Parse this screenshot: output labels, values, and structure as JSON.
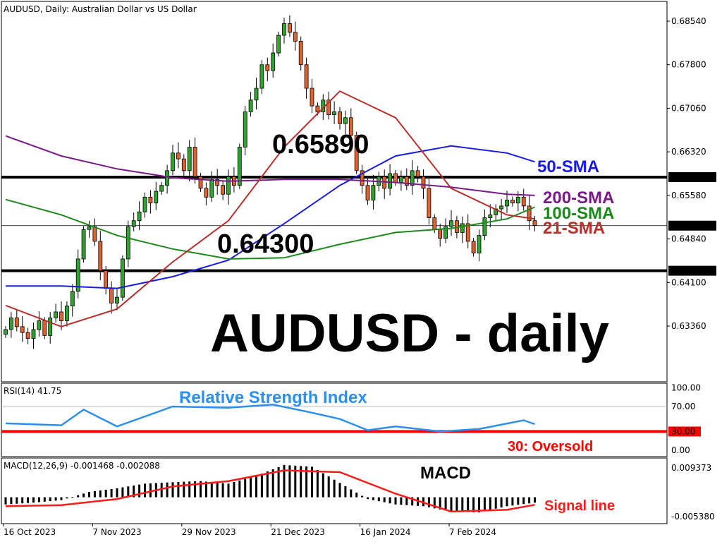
{
  "chart_data": {
    "type": "candlestick",
    "title": "AUDUSD, Daily:  Australian Dollar vs US Dollar",
    "overlay_title": "AUDUSD - daily",
    "colors": {
      "up": "#2ea62e",
      "down": "#e2622d",
      "sma50": "#1a1ae6",
      "sma100": "#1a8a1a",
      "sma200": "#7a1a8a",
      "sma21": "#b8302a",
      "rsi": "#2b8ff0",
      "macd_hist": "#000000",
      "signal": "#ff1a1a",
      "levels": "#000000",
      "oversold": "#ff0000"
    },
    "price_axis": {
      "ylim": [
        0.63,
        0.689
      ],
      "ticks": [
        "0.68540",
        "0.67800",
        "0.67060",
        "0.66320",
        "0.65580",
        "0.64840",
        "0.64100",
        "0.63360"
      ],
      "tick_values": [
        0.6854,
        0.678,
        0.6706,
        0.6632,
        0.6558,
        0.6484,
        0.641,
        0.6336
      ]
    },
    "date_labels": [
      {
        "bar": 0,
        "text": "16 Oct 2023"
      },
      {
        "bar": 16,
        "text": "7 Nov 2023"
      },
      {
        "bar": 32,
        "text": "29 Nov 2023"
      },
      {
        "bar": 48,
        "text": "21 Dec 2023"
      },
      {
        "bar": 64,
        "text": "16 Jan 2024"
      },
      {
        "bar": 80,
        "text": "7 Feb 2024"
      }
    ],
    "closes": [
      0.633,
      0.635,
      0.6335,
      0.6325,
      0.6315,
      0.633,
      0.6345,
      0.632,
      0.635,
      0.636,
      0.6345,
      0.637,
      0.6395,
      0.645,
      0.65,
      0.6505,
      0.648,
      0.643,
      0.64,
      0.6375,
      0.6385,
      0.645,
      0.6505,
      0.6515,
      0.653,
      0.6555,
      0.6545,
      0.6565,
      0.6575,
      0.66,
      0.663,
      0.662,
      0.66,
      0.664,
      0.659,
      0.657,
      0.6555,
      0.6585,
      0.6575,
      0.656,
      0.659,
      0.6575,
      0.664,
      0.67,
      0.672,
      0.674,
      0.678,
      0.677,
      0.68,
      0.683,
      0.685,
      0.6835,
      0.682,
      0.678,
      0.674,
      0.671,
      0.67,
      0.672,
      0.6695,
      0.67,
      0.668,
      0.669,
      0.666,
      0.66,
      0.6575,
      0.655,
      0.6575,
      0.659,
      0.657,
      0.6595,
      0.658,
      0.659,
      0.6575,
      0.66,
      0.659,
      0.657,
      0.652,
      0.65,
      0.6485,
      0.6505,
      0.6515,
      0.6495,
      0.651,
      0.648,
      0.646,
      0.649,
      0.652,
      0.6525,
      0.6535,
      0.654,
      0.655,
      0.6545,
      0.6555,
      0.654,
      0.6515,
      0.6507
    ],
    "sma_bars": [
      0,
      10,
      20,
      30,
      40,
      50,
      60,
      70,
      80,
      90,
      95
    ],
    "sma": [
      {
        "name": "50-SMA",
        "key": "sma50",
        "values": [
          0.6404,
          0.6404,
          0.64,
          0.642,
          0.6448,
          0.651,
          0.6575,
          0.6625,
          0.6642,
          0.663,
          0.6615
        ]
      },
      {
        "name": "100-SMA",
        "key": "sma100",
        "values": [
          0.6551,
          0.6525,
          0.649,
          0.6467,
          0.645,
          0.6452,
          0.6475,
          0.6495,
          0.6502,
          0.6518,
          0.6538
        ]
      },
      {
        "name": "200-SMA",
        "key": "sma200",
        "values": [
          0.6659,
          0.6625,
          0.6603,
          0.6588,
          0.6582,
          0.6585,
          0.6585,
          0.658,
          0.6572,
          0.656,
          0.6558
        ]
      },
      {
        "name": "21-SMA",
        "key": "sma21",
        "values": [
          0.6371,
          0.6335,
          0.6365,
          0.6445,
          0.6515,
          0.664,
          0.6735,
          0.669,
          0.657,
          0.6525,
          0.6518
        ]
      }
    ],
    "levels": [
      {
        "value": 0.6589,
        "label": "0.65890",
        "annotation": "0.65890"
      },
      {
        "value": 0.643,
        "label": "0.64300",
        "annotation": "0.64300"
      }
    ],
    "last_price": {
      "value": 0.65066,
      "label": "0.65066"
    },
    "rsi": {
      "label": "RSI(14) 41.75",
      "title": "Relative Strength Index",
      "ylim": [
        0,
        100
      ],
      "ticks": [
        "100.00",
        "70.00",
        "0.00"
      ],
      "oversold_label": "30.00",
      "oversold_text": "30: Oversold",
      "bars": [
        0,
        10,
        14,
        20,
        30,
        40,
        48,
        55,
        60,
        65,
        70,
        78,
        85,
        93,
        95
      ],
      "values": [
        43,
        40,
        65,
        38,
        70,
        68,
        73,
        60,
        50,
        32,
        38,
        30,
        34,
        48,
        41.75
      ]
    },
    "macd": {
      "label": "MACD(12,26,9) -0.001468 -0.002088",
      "title": "MACD",
      "signal_text": "Signal line",
      "ylim": [
        -0.00538,
        0.009373
      ],
      "ticks": [
        "0.009373",
        "-0.005380"
      ],
      "hist_bars": [
        0,
        5,
        10,
        15,
        20,
        25,
        30,
        35,
        40,
        45,
        50,
        55,
        60,
        65,
        70,
        75,
        80,
        85,
        90,
        95
      ],
      "hist_values": [
        -0.002,
        -0.0015,
        -0.0008,
        0.0015,
        0.0025,
        0.0038,
        0.0042,
        0.0045,
        0.0038,
        0.006,
        0.009,
        0.0085,
        0.004,
        -0.0005,
        -0.002,
        -0.0025,
        -0.004,
        -0.0042,
        -0.0025,
        -0.0015
      ],
      "signal_bars": [
        0,
        10,
        20,
        30,
        40,
        50,
        60,
        70,
        80,
        90,
        95
      ],
      "signal_values": [
        -0.0025,
        -0.0022,
        -0.0005,
        0.003,
        0.0045,
        0.0075,
        0.007,
        0.001,
        -0.004,
        -0.0035,
        -0.0021
      ]
    }
  }
}
